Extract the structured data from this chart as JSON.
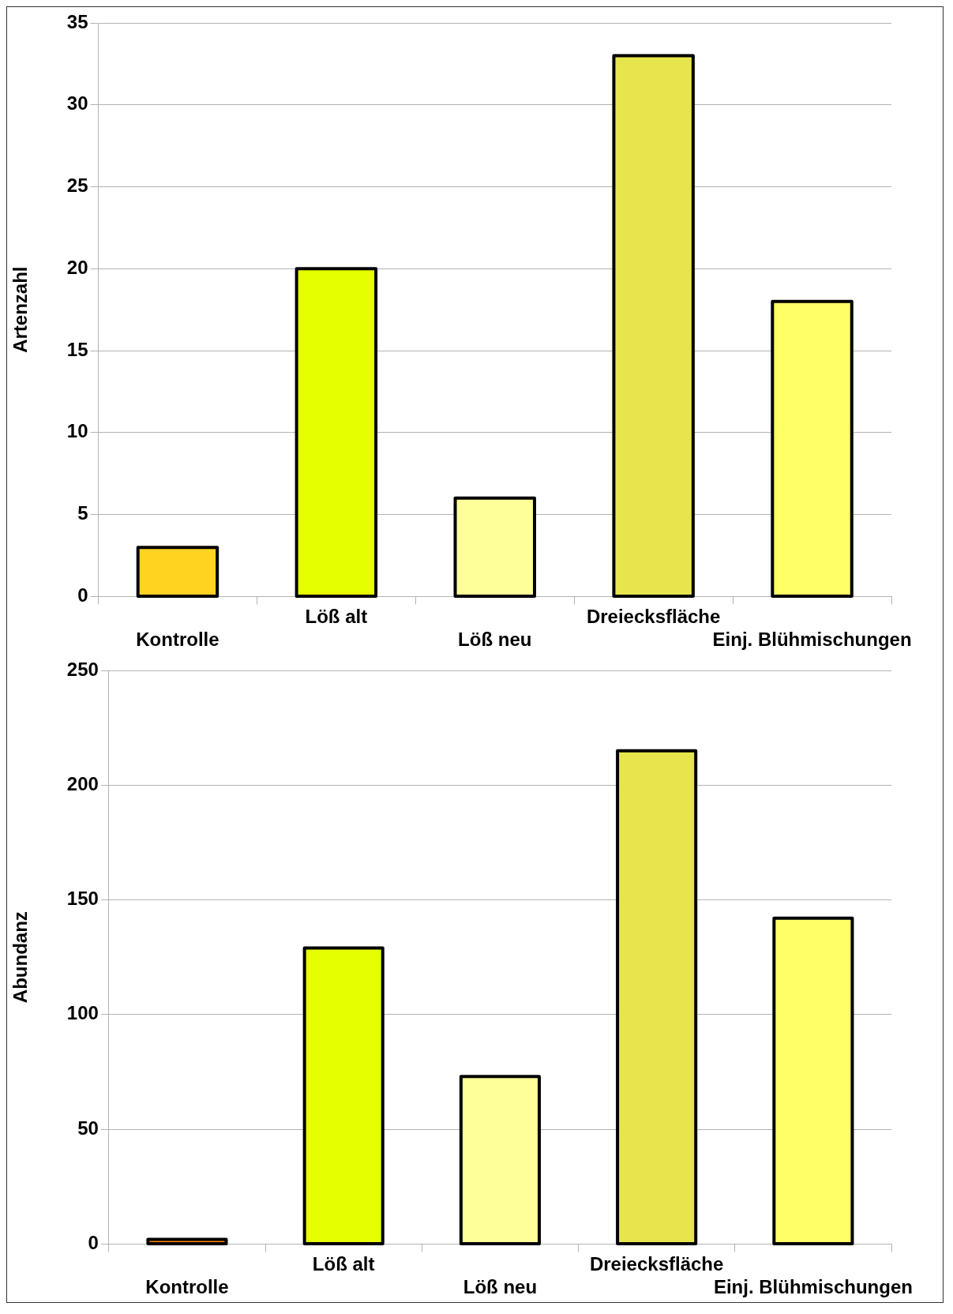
{
  "chart_data": [
    {
      "type": "bar",
      "ylabel": "Artenzahl",
      "categories": [
        "Kontrolle",
        "Löß alt",
        "Löß neu",
        "Dreiecksfläche",
        "Einj. Blühmischungen"
      ],
      "values": [
        3,
        20,
        6,
        33,
        18
      ],
      "colors": [
        "#ffd320",
        "#e6ff00",
        "#ffff99",
        "#e6e64c",
        "#ffff66"
      ],
      "ylim": [
        0,
        35
      ],
      "yticks": [
        0,
        5,
        10,
        15,
        20,
        25,
        30,
        35
      ],
      "grid": "y",
      "legend": false
    },
    {
      "type": "bar",
      "ylabel": "Abundanz",
      "categories": [
        "Kontrolle",
        "Löß alt",
        "Löß neu",
        "Dreiecksfläche",
        "Einj. Blühmischungen"
      ],
      "values": [
        2,
        129,
        73,
        215,
        142
      ],
      "colors": [
        "#ff8000",
        "#e6ff00",
        "#ffff99",
        "#e6e64c",
        "#ffff66"
      ],
      "ylim": [
        0,
        250
      ],
      "yticks": [
        0,
        50,
        100,
        150,
        200,
        250
      ],
      "grid": "y",
      "legend": false
    }
  ]
}
